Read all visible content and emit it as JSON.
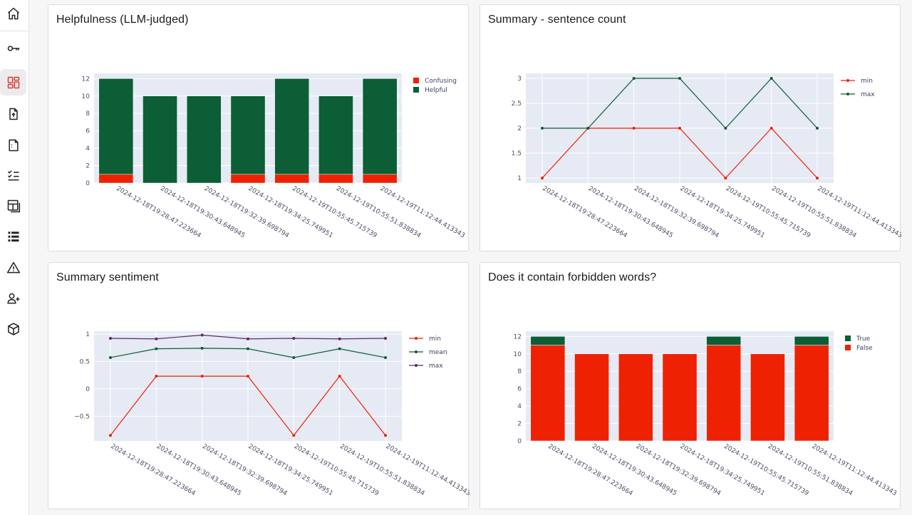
{
  "colors": {
    "green": "#0b5e36",
    "red": "#ef2103",
    "purple": "#5a2b63",
    "plot_bg": "#e5eaf4",
    "grid": "#ffffff",
    "accent": "#e0392b"
  },
  "sidebar": {
    "items": [
      {
        "icon": "home-icon",
        "active": false
      },
      {
        "icon": "key-icon",
        "active": false
      },
      {
        "icon": "dashboard-icon",
        "active": true
      },
      {
        "icon": "file-upload-icon",
        "active": false
      },
      {
        "icon": "file-icon",
        "active": false
      },
      {
        "icon": "checklist-icon",
        "active": false
      },
      {
        "icon": "layout-icon",
        "active": false
      },
      {
        "icon": "list-icon",
        "active": false
      },
      {
        "icon": "warning-icon",
        "active": false
      },
      {
        "icon": "add-user-icon",
        "active": false
      },
      {
        "icon": "cube-icon",
        "active": false
      }
    ]
  },
  "panels": [
    {
      "title": "Helpfulness (LLM-judged)"
    },
    {
      "title": "Summary - sentence count"
    },
    {
      "title": "Summary sentiment"
    },
    {
      "title": "Does it contain forbidden words?"
    }
  ],
  "chart_data": [
    {
      "type": "bar",
      "stacked": true,
      "title": "Helpfulness (LLM-judged)",
      "categories": [
        "2024-12-18T19:28:47.223664",
        "2024-12-18T19:30:43.648945",
        "2024-12-18T19:32:39.698794",
        "2024-12-18T19:34:25.749951",
        "2024-12-19T10:55:45.715739",
        "2024-12-19T10:55:51.838834",
        "2024-12-19T11:12:44.413343"
      ],
      "series": [
        {
          "name": "Confusing",
          "color": "#ef2103",
          "values": [
            1,
            0,
            0,
            1,
            1,
            1,
            1
          ]
        },
        {
          "name": "Helpful",
          "color": "#0b5e36",
          "values": [
            11,
            10,
            10,
            9,
            11,
            9,
            11
          ]
        }
      ],
      "yticks": [
        0,
        2,
        4,
        6,
        8,
        10,
        12
      ],
      "ylim": [
        0,
        12.6
      ],
      "legend": "top-right",
      "grid": true
    },
    {
      "type": "line",
      "title": "Summary - sentence count",
      "categories": [
        "2024-12-18T19:28:47.223664",
        "2024-12-18T19:30:43.648945",
        "2024-12-18T19:32:39.698794",
        "2024-12-18T19:34:25.749951",
        "2024-12-19T10:55:45.715739",
        "2024-12-19T10:55:51.838834",
        "2024-12-19T11:12:44.413343"
      ],
      "series": [
        {
          "name": "min",
          "color": "#ef2103",
          "values": [
            1,
            2,
            2,
            2,
            1,
            2,
            1
          ]
        },
        {
          "name": "max",
          "color": "#0b5e36",
          "values": [
            2,
            2,
            3,
            3,
            2,
            3,
            2
          ]
        }
      ],
      "yticks": [
        1,
        1.5,
        2,
        2.5,
        3
      ],
      "ytick_labels": [
        "1",
        "1.5",
        "2",
        "2.5",
        "3"
      ],
      "ylim": [
        0.9,
        3.1
      ],
      "legend": "top-right",
      "grid": true
    },
    {
      "type": "line",
      "title": "Summary sentiment",
      "categories": [
        "2024-12-18T19:28:47.223664",
        "2024-12-18T19:30:43.648945",
        "2024-12-18T19:32:39.698794",
        "2024-12-18T19:34:25.749951",
        "2024-12-19T10:55:45.715739",
        "2024-12-19T10:55:51.838834",
        "2024-12-19T11:12:44.413343"
      ],
      "series": [
        {
          "name": "min",
          "color": "#ef2103",
          "values": [
            -0.85,
            0.23,
            0.23,
            0.23,
            -0.85,
            0.23,
            -0.85
          ]
        },
        {
          "name": "mean",
          "color": "#0b5e36",
          "values": [
            0.57,
            0.73,
            0.74,
            0.73,
            0.57,
            0.73,
            0.57
          ]
        },
        {
          "name": "max",
          "color": "#5a2b63",
          "values": [
            0.92,
            0.91,
            0.98,
            0.91,
            0.92,
            0.91,
            0.92
          ]
        }
      ],
      "yticks": [
        -0.5,
        0,
        0.5,
        1
      ],
      "ytick_labels": [
        "−0.5",
        "0",
        "0.5",
        "1"
      ],
      "ylim": [
        -0.95,
        1.05
      ],
      "legend": "top-right",
      "grid": true
    },
    {
      "type": "bar",
      "stacked": true,
      "title": "Does it contain forbidden words?",
      "categories": [
        "2024-12-18T19:28:47.223664",
        "2024-12-18T19:30:43.648945",
        "2024-12-18T19:32:39.698794",
        "2024-12-18T19:34:25.749951",
        "2024-12-19T10:55:45.715739",
        "2024-12-19T10:55:51.838834",
        "2024-12-19T11:12:44.413343"
      ],
      "series": [
        {
          "name": "True",
          "color": "#0b5e36",
          "values": [
            1,
            0,
            0,
            0,
            1,
            0,
            1
          ]
        },
        {
          "name": "False",
          "color": "#ef2103",
          "values": [
            11,
            10,
            10,
            10,
            11,
            10,
            11
          ]
        }
      ],
      "stack_order": [
        "False",
        "True"
      ],
      "yticks": [
        0,
        2,
        4,
        6,
        8,
        10,
        12
      ],
      "ylim": [
        0,
        12.6
      ],
      "legend": "top-right",
      "grid": true
    }
  ]
}
